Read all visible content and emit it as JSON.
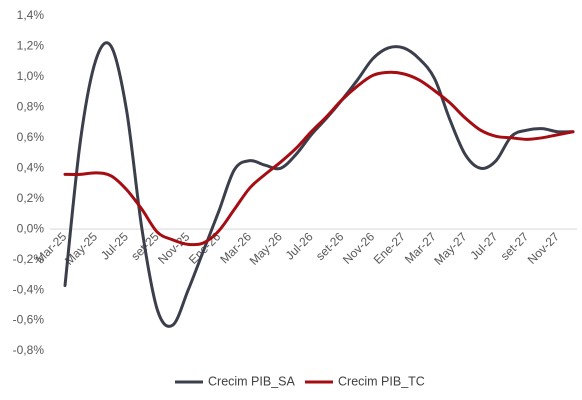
{
  "chart_data": {
    "type": "line",
    "categories": [
      "Mar-25",
      null,
      "May-25",
      null,
      "Jul-25",
      null,
      "set-25",
      null,
      "Nov-25",
      null,
      "Ene-26",
      null,
      "Mar-26",
      null,
      "May-26",
      null,
      "Jul-26",
      null,
      "set-26",
      null,
      "Nov-26",
      null,
      "Ene-27",
      null,
      "Mar-27",
      null,
      "May-27",
      null,
      "Jul-27",
      null,
      "set-27",
      null,
      "Nov-27",
      null
    ],
    "series": [
      {
        "name": "Crecim PIB_SA",
        "color": "#3b3f4c",
        "values": [
          -0.37,
          0.58,
          1.11,
          1.2,
          0.78,
          0.0,
          -0.53,
          -0.63,
          -0.4,
          -0.14,
          0.12,
          0.39,
          0.45,
          0.42,
          0.4,
          0.49,
          0.62,
          0.73,
          0.85,
          0.98,
          1.12,
          1.19,
          1.19,
          1.12,
          0.99,
          0.72,
          0.49,
          0.4,
          0.45,
          0.61,
          0.65,
          0.66,
          0.64,
          0.64
        ]
      },
      {
        "name": "Crecim PIB_TC",
        "color": "#a50d12",
        "values": [
          0.36,
          0.36,
          0.37,
          0.35,
          0.26,
          0.13,
          -0.02,
          -0.07,
          -0.1,
          -0.09,
          -0.01,
          0.13,
          0.27,
          0.36,
          0.44,
          0.53,
          0.64,
          0.74,
          0.85,
          0.94,
          1.01,
          1.03,
          1.02,
          0.98,
          0.91,
          0.83,
          0.73,
          0.65,
          0.61,
          0.6,
          0.59,
          0.6,
          0.62,
          0.64
        ]
      }
    ],
    "ylim": [
      -0.8,
      1.4
    ],
    "yticks": [
      {
        "value": -0.8,
        "label": "-0,8%"
      },
      {
        "value": -0.6,
        "label": "-0,6%"
      },
      {
        "value": -0.4,
        "label": "-0,4%"
      },
      {
        "value": -0.2,
        "label": "-0,2%"
      },
      {
        "value": 0,
        "label": "0,0%"
      },
      {
        "value": 0.2,
        "label": "0,2%"
      },
      {
        "value": 0.4,
        "label": "0,4%"
      },
      {
        "value": 0.6,
        "label": "0,6%"
      },
      {
        "value": 0.8,
        "label": "0,8%"
      },
      {
        "value": 1.0,
        "label": "1,0%"
      },
      {
        "value": 1.2,
        "label": "1,2%"
      },
      {
        "value": 1.4,
        "label": "1,4%"
      }
    ],
    "legend": "bottom"
  }
}
